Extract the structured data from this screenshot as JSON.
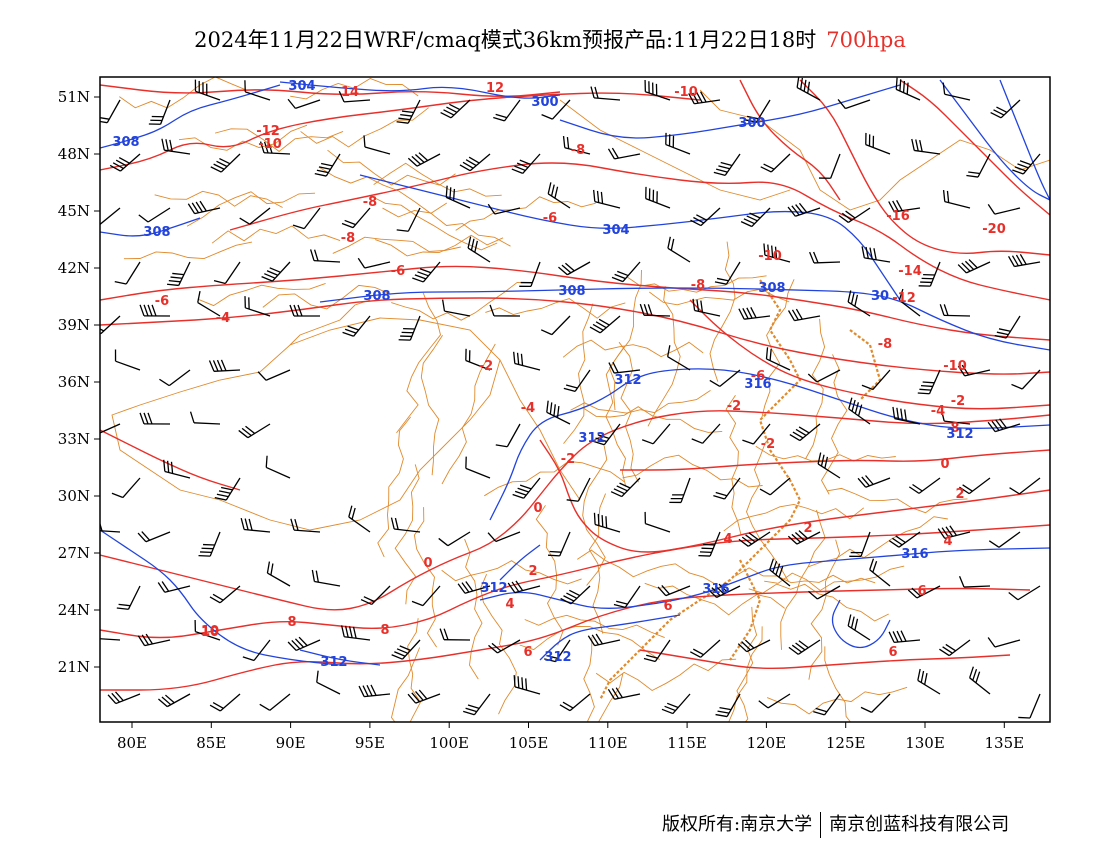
{
  "title": {
    "main": "2024年11月22日WRF/cmaq模式36km预报产品:11月22日18时",
    "level": "700hpa",
    "level_color": "#e8302a"
  },
  "axes": {
    "lon_labels": [
      "80E",
      "85E",
      "90E",
      "95E",
      "100E",
      "105E",
      "110E",
      "115E",
      "120E",
      "125E",
      "130E",
      "135E"
    ],
    "lat_labels": [
      "51N",
      "48N",
      "45N",
      "42N",
      "39N",
      "36N",
      "33N",
      "30N",
      "27N",
      "24N",
      "21N"
    ]
  },
  "colors": {
    "height_contour": "#2244dd",
    "temperature_contour": "#e8302a",
    "boundaries": "#e08a2c",
    "wind_barbs": "#000000"
  },
  "height_labels": [
    "304",
    "300",
    "300",
    "308",
    "308",
    "304",
    "308",
    "308",
    "308",
    "30",
    "312",
    "312",
    "312",
    "312",
    "316",
    "316",
    "312",
    "316",
    "312"
  ],
  "temperature_labels": [
    "14",
    "12",
    "10",
    "-12",
    "-10",
    "-10",
    "-8",
    "-8",
    "-8",
    "-6",
    "-6",
    "-6",
    "-4",
    "-8",
    "-10",
    "-16",
    "-20",
    "-14",
    "-12",
    "-8",
    "-10",
    "-6",
    "-2",
    "-4",
    "-2",
    "-2",
    "-4",
    "-2",
    "0",
    "-2",
    "0",
    "2",
    "0",
    "4",
    "2",
    "4",
    "2",
    "6",
    "4",
    "6",
    "8",
    "8",
    "10",
    "6",
    "6",
    "8"
  ],
  "copyright": {
    "left": "版权所有:南京大学",
    "right": "南京创蓝科技有限公司"
  }
}
